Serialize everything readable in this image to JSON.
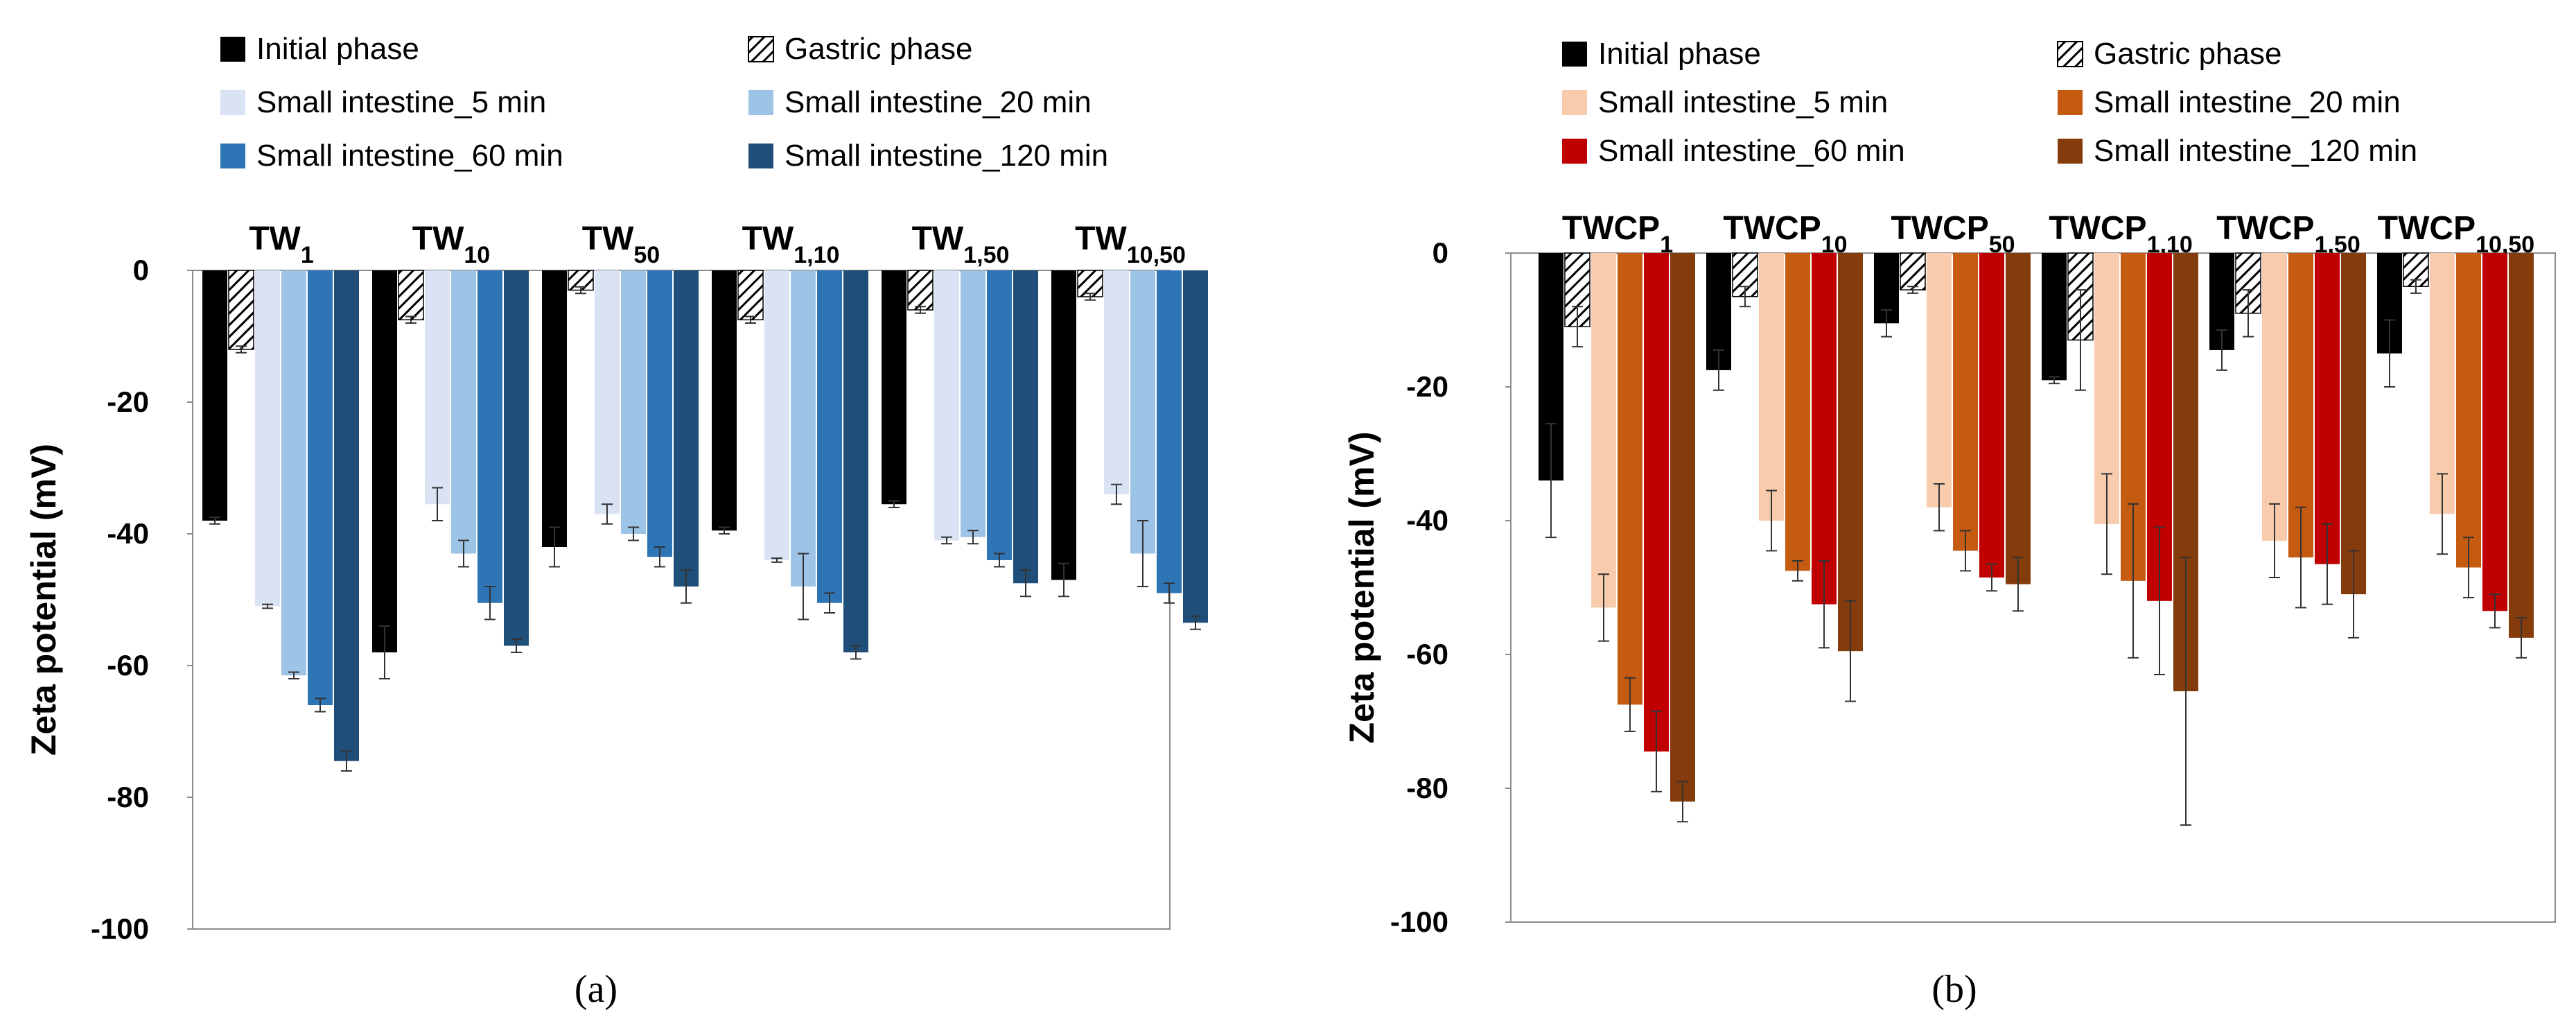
{
  "chart_data": [
    {
      "panel_label": "(a)",
      "type": "bar",
      "ylabel": "Zeta potential (mV)",
      "ylim": [
        -100,
        0
      ],
      "yticks": [
        0,
        -20,
        -40,
        -60,
        -80,
        -100
      ],
      "categories": [
        {
          "base": "TW",
          "sub": "1"
        },
        {
          "base": "TW",
          "sub": "10"
        },
        {
          "base": "TW",
          "sub": "50"
        },
        {
          "base": "TW",
          "sub": "1,10"
        },
        {
          "base": "TW",
          "sub": "1,50"
        },
        {
          "base": "TW",
          "sub": "10,50"
        }
      ],
      "legend_position": "top",
      "series": [
        {
          "name": "Initial phase",
          "color": "#000000",
          "pattern": "solid",
          "values": [
            -38,
            -58,
            -42,
            -39.5,
            -35.5,
            -47
          ],
          "errors": [
            0.5,
            4,
            3,
            0.5,
            0.5,
            2.5
          ]
        },
        {
          "name": "Gastric phase",
          "color": "#ffffff",
          "pattern": "hatch",
          "values": [
            -12,
            -7.5,
            -3,
            -7.5,
            -6,
            -4
          ],
          "errors": [
            0.5,
            0.5,
            0.5,
            0.5,
            0.5,
            0.5
          ]
        },
        {
          "name": "Small intestine_5 min",
          "color": "#dae3f3",
          "pattern": "solid",
          "values": [
            -51,
            -35.5,
            -37,
            -44,
            -41,
            -34
          ],
          "errors": [
            0.3,
            2.5,
            1.5,
            0.3,
            0.5,
            1.5
          ]
        },
        {
          "name": "Small intestine_20 min",
          "color": "#9dc3e6",
          "pattern": "solid",
          "values": [
            -61.5,
            -43,
            -40,
            -48,
            -40.5,
            -43
          ],
          "errors": [
            0.5,
            2,
            1,
            5,
            1,
            5
          ]
        },
        {
          "name": "Small intestine_60 min",
          "color": "#2e75b6",
          "pattern": "solid",
          "values": [
            -66,
            -50.5,
            -43.5,
            -50.5,
            -44,
            -49
          ],
          "errors": [
            1,
            2.5,
            1.5,
            1.5,
            1,
            1.5
          ]
        },
        {
          "name": "Small intestine_120 min",
          "color": "#1f4e79",
          "pattern": "solid",
          "values": [
            -74.5,
            -57,
            -48,
            -58,
            -47.5,
            -53.5
          ],
          "errors": [
            1.5,
            1,
            2.5,
            1,
            2,
            1
          ]
        }
      ]
    },
    {
      "panel_label": "(b)",
      "type": "bar",
      "ylabel": "Zeta potential (mV)",
      "ylim": [
        -100,
        0
      ],
      "yticks": [
        0,
        -20,
        -40,
        -60,
        -80,
        -100
      ],
      "categories": [
        {
          "base": "TWCP",
          "sub": "1"
        },
        {
          "base": "TWCP",
          "sub": "10"
        },
        {
          "base": "TWCP",
          "sub": "50"
        },
        {
          "base": "TWCP",
          "sub": "1,10"
        },
        {
          "base": "TWCP",
          "sub": "1,50"
        },
        {
          "base": "TWCP",
          "sub": "10,50"
        }
      ],
      "legend_position": "top",
      "series": [
        {
          "name": "Initial phase",
          "color": "#000000",
          "pattern": "solid",
          "values": [
            -34,
            -17.5,
            -10.5,
            -19,
            -14.5,
            -15
          ],
          "errors": [
            8.5,
            3,
            2,
            0.5,
            3,
            5
          ]
        },
        {
          "name": "Gastric phase",
          "color": "#ffffff",
          "pattern": "hatch",
          "values": [
            -11,
            -6.5,
            -5.5,
            -13,
            -9,
            -5
          ],
          "errors": [
            3,
            1.5,
            0.5,
            7.5,
            3.5,
            1
          ]
        },
        {
          "name": "Small intestine_5 min",
          "color": "#f8cbad",
          "pattern": "solid",
          "values": [
            -53,
            -40,
            -38,
            -40.5,
            -43,
            -39
          ],
          "errors": [
            5,
            4.5,
            3.5,
            7.5,
            5.5,
            6
          ]
        },
        {
          "name": "Small intestine_20 min",
          "color": "#c55a11",
          "pattern": "solid",
          "values": [
            -67.5,
            -47.5,
            -44.5,
            -49,
            -45.5,
            -47
          ],
          "errors": [
            4,
            1.5,
            3,
            11.5,
            7.5,
            4.5
          ]
        },
        {
          "name": "Small intestine_60 min",
          "color": "#c00000",
          "pattern": "solid",
          "values": [
            -74.5,
            -52.5,
            -48.5,
            -52,
            -46.5,
            -53.5
          ],
          "errors": [
            6,
            6.5,
            2,
            11,
            6,
            2.5
          ]
        },
        {
          "name": "Small intestine_120 min",
          "color": "#843c0c",
          "pattern": "solid",
          "values": [
            -82,
            -59.5,
            -49.5,
            -65.5,
            -51,
            -57.5
          ],
          "errors": [
            3,
            7.5,
            4,
            20,
            6.5,
            3
          ]
        }
      ]
    }
  ]
}
